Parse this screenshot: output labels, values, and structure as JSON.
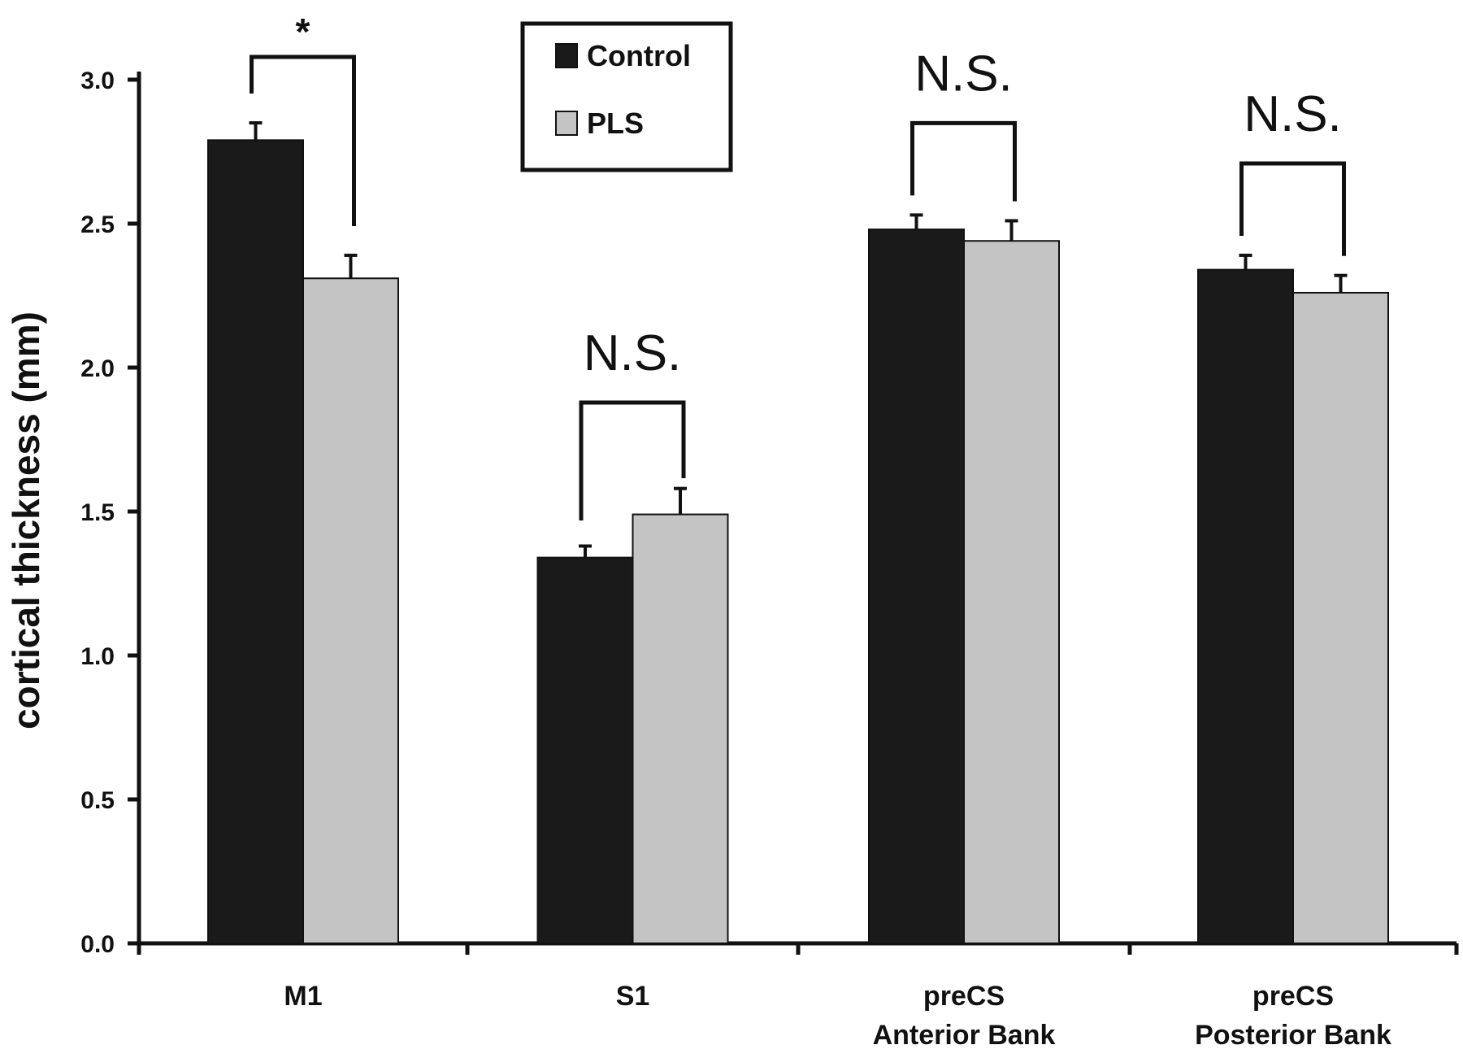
{
  "chart_data": {
    "type": "bar",
    "categories": [
      [
        "M1"
      ],
      [
        "S1"
      ],
      [
        "preCS",
        "Anterior Bank"
      ],
      [
        "preCS",
        "Posterior Bank"
      ]
    ],
    "series": [
      {
        "name": "Control",
        "color": "#1a1a1a",
        "values": [
          2.79,
          1.34,
          2.48,
          2.34
        ],
        "errors": [
          0.06,
          0.04,
          0.05,
          0.05
        ]
      },
      {
        "name": "PLS",
        "color": "#c4c4c4",
        "values": [
          2.31,
          1.49,
          2.44,
          2.26
        ],
        "errors": [
          0.08,
          0.09,
          0.07,
          0.06
        ]
      }
    ],
    "ylabel": "cortical thickness (mm)",
    "ylim": [
      0,
      3.0
    ],
    "yticks": [
      "0.0",
      "0.5",
      "1.0",
      "1.5",
      "2.0",
      "2.5",
      "3.0"
    ],
    "grid": false,
    "legend_position": "top-center",
    "significance": [
      {
        "category": "M1",
        "label": "*"
      },
      {
        "category": "S1",
        "label": "N.S."
      },
      {
        "category": "preCS Anterior Bank",
        "label": "N.S."
      },
      {
        "category": "preCS Posterior Bank",
        "label": "N.S."
      }
    ]
  }
}
